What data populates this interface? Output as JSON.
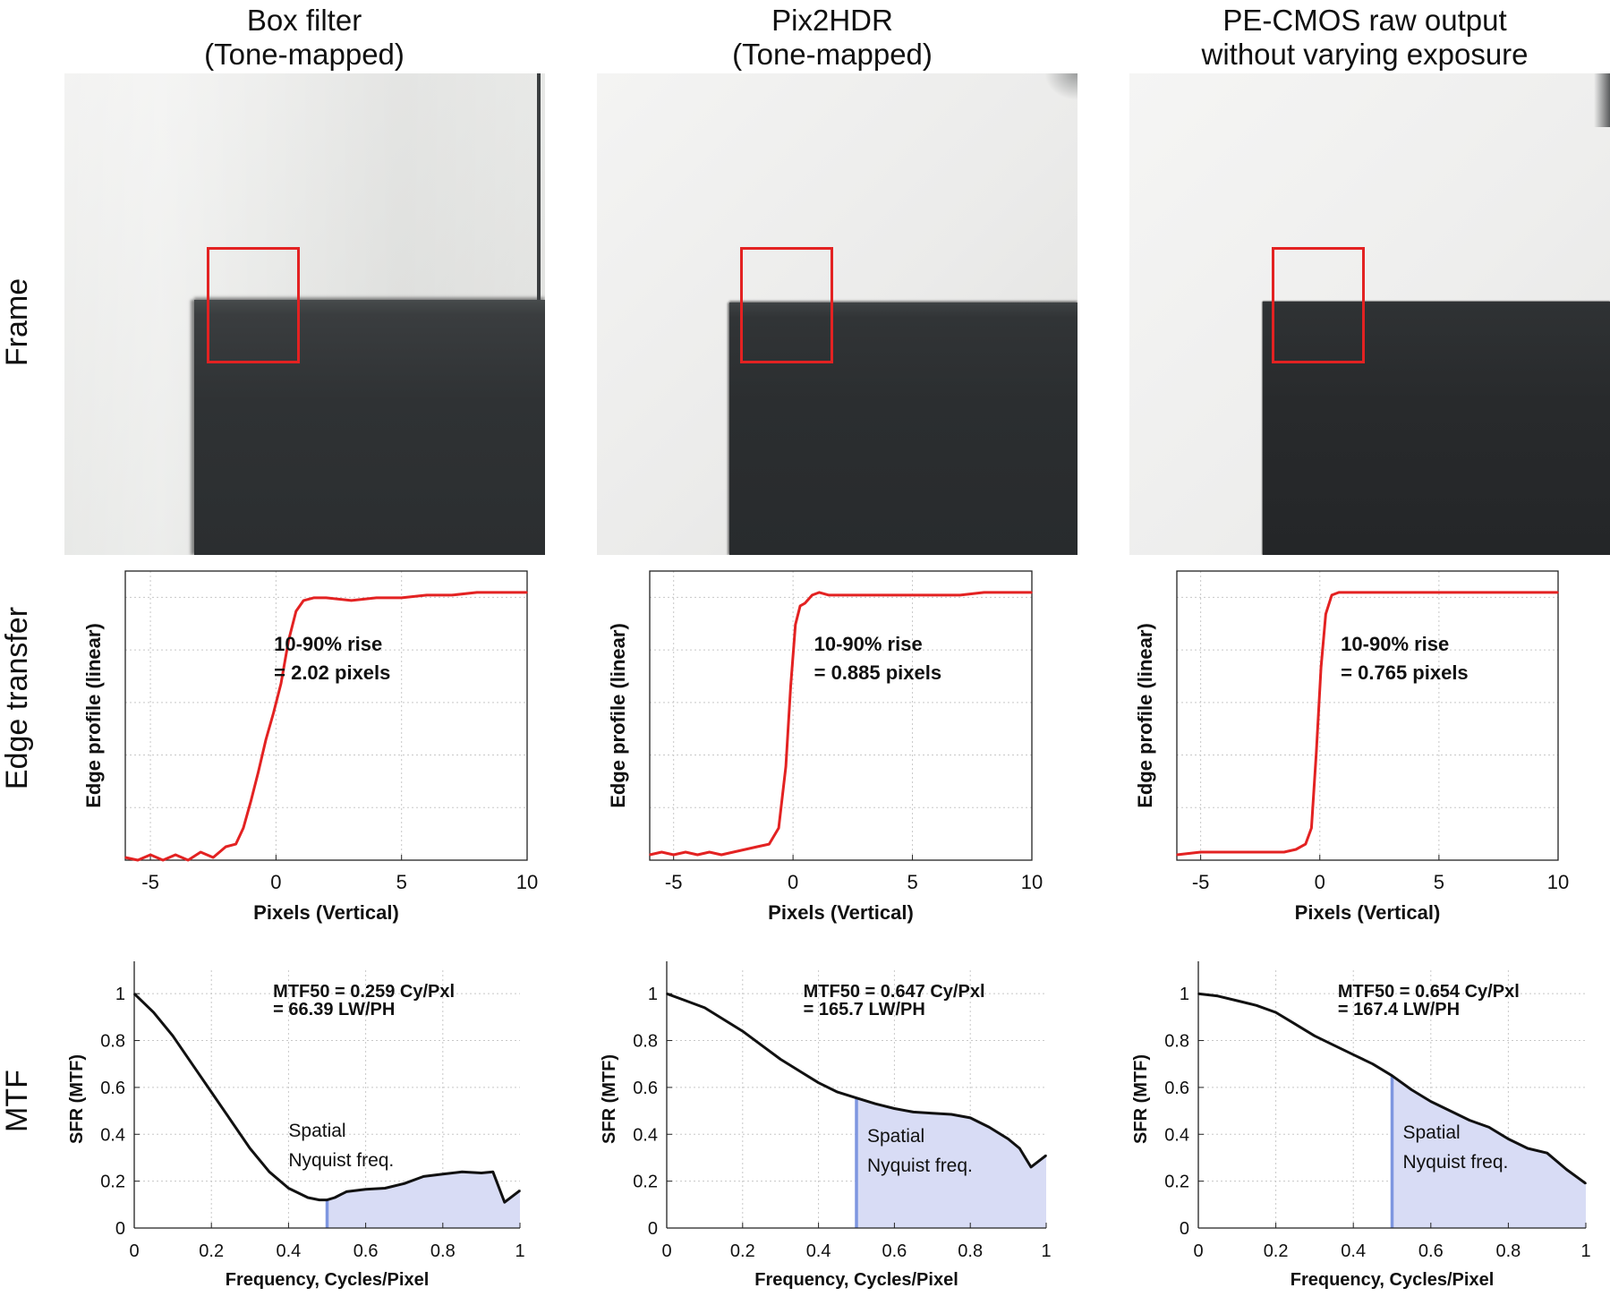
{
  "columns": [
    {
      "title_line1": "Box filter",
      "title_line2": "(Tone-mapped)"
    },
    {
      "title_line1": "Pix2HDR",
      "title_line2": "(Tone-mapped)"
    },
    {
      "title_line1": "PE-CMOS raw output",
      "title_line2": "without varying exposure"
    }
  ],
  "row_labels": {
    "frame": "Frame",
    "edge": "Edge transfer",
    "mtf": "MTF"
  },
  "colors": {
    "curve": "#e32222",
    "mtf_line": "#111111",
    "fill": "#d8dcf5",
    "nyquist": "#7e96e0",
    "roi": "#e32222"
  },
  "chart_data": [
    {
      "type": "line",
      "panel": "edge",
      "column": 0,
      "xlabel": "Pixels (Vertical)",
      "ylabel": "Edge profile (linear)",
      "xlim": [
        -6,
        10
      ],
      "ylim": [
        0,
        1.08
      ],
      "xticks": [
        -5,
        0,
        5,
        10
      ],
      "xtick_labels": [
        "-5",
        "0",
        "5",
        "10"
      ],
      "annotation_line1": "10-90% rise",
      "annotation_line2": "= 2.02 pixels",
      "x": [
        -6,
        -5.5,
        -5,
        -4.5,
        -4,
        -3.5,
        -3,
        -2.5,
        -2,
        -1.6,
        -1.3,
        -1.0,
        -0.7,
        -0.4,
        -0.1,
        0.2,
        0.5,
        0.8,
        1.1,
        1.5,
        2,
        3,
        4,
        5,
        6,
        7,
        8,
        9,
        10
      ],
      "y": [
        0.01,
        0.0,
        0.02,
        0.0,
        0.02,
        0.0,
        0.03,
        0.01,
        0.05,
        0.06,
        0.12,
        0.22,
        0.33,
        0.45,
        0.55,
        0.66,
        0.82,
        0.93,
        0.97,
        0.98,
        0.98,
        0.97,
        0.98,
        0.98,
        0.99,
        0.99,
        1.0,
        1.0,
        1.0
      ]
    },
    {
      "type": "line",
      "panel": "edge",
      "column": 1,
      "xlabel": "Pixels (Vertical)",
      "ylabel": "Edge profile (linear)",
      "xlim": [
        -6,
        10
      ],
      "ylim": [
        0,
        1.08
      ],
      "xticks": [
        -5,
        0,
        5,
        10
      ],
      "xtick_labels": [
        "-5",
        "0",
        "5",
        "10"
      ],
      "annotation_line1": "10-90% rise",
      "annotation_line2": "= 0.885 pixels",
      "x": [
        -6,
        -5.5,
        -5,
        -4.5,
        -4,
        -3.5,
        -3,
        -2.5,
        -2,
        -1.5,
        -1,
        -0.6,
        -0.3,
        -0.1,
        0.1,
        0.3,
        0.5,
        0.8,
        1.1,
        1.5,
        2,
        3,
        4,
        5,
        6,
        7,
        8,
        9,
        10
      ],
      "y": [
        0.02,
        0.03,
        0.02,
        0.03,
        0.02,
        0.03,
        0.02,
        0.03,
        0.04,
        0.05,
        0.06,
        0.12,
        0.35,
        0.65,
        0.88,
        0.95,
        0.96,
        0.99,
        1.0,
        0.99,
        0.99,
        0.99,
        0.99,
        0.99,
        0.99,
        0.99,
        1.0,
        1.0,
        1.0
      ]
    },
    {
      "type": "line",
      "panel": "edge",
      "column": 2,
      "xlabel": "Pixels (Vertical)",
      "ylabel": "Edge profile (linear)",
      "xlim": [
        -6,
        10
      ],
      "ylim": [
        0,
        1.08
      ],
      "xticks": [
        -5,
        0,
        5,
        10
      ],
      "xtick_labels": [
        "-5",
        "0",
        "5",
        "10"
      ],
      "annotation_line1": "10-90% rise",
      "annotation_line2": "= 0.765 pixels",
      "x": [
        -6,
        -5,
        -4,
        -3,
        -2,
        -1.5,
        -1,
        -0.6,
        -0.35,
        -0.15,
        0.05,
        0.25,
        0.5,
        0.8,
        1.2,
        2,
        3,
        4,
        5,
        6,
        7,
        8,
        9,
        10
      ],
      "y": [
        0.02,
        0.03,
        0.03,
        0.03,
        0.03,
        0.03,
        0.04,
        0.06,
        0.12,
        0.4,
        0.72,
        0.92,
        0.99,
        1.0,
        1.0,
        1.0,
        1.0,
        1.0,
        1.0,
        1.0,
        1.0,
        1.0,
        1.0,
        1.0
      ]
    },
    {
      "type": "area",
      "panel": "mtf",
      "column": 0,
      "xlabel": "Frequency, Cycles/Pixel",
      "ylabel": "SFR (MTF)",
      "xlim": [
        0,
        1
      ],
      "ylim": [
        0,
        1.1
      ],
      "xticks": [
        0,
        0.2,
        0.4,
        0.6,
        0.8,
        1
      ],
      "xtick_labels": [
        "0",
        "0.2",
        "0.4",
        "0.6",
        "0.8",
        "1"
      ],
      "yticks": [
        0,
        0.2,
        0.4,
        0.6,
        0.8,
        1
      ],
      "ytick_labels": [
        "0",
        "0.2",
        "0.4",
        "0.6",
        "0.8",
        "1"
      ],
      "annotation_line1": "MTF50 = 0.259 Cy/Pxl",
      "annotation_line2": "= 66.39 LW/PH",
      "nyquist_line1": "Spatial",
      "nyquist_line2": "Nyquist freq.",
      "nyquist_x": 0.5,
      "x": [
        0,
        0.05,
        0.1,
        0.15,
        0.2,
        0.25,
        0.3,
        0.35,
        0.4,
        0.45,
        0.48,
        0.5,
        0.52,
        0.55,
        0.6,
        0.65,
        0.7,
        0.75,
        0.8,
        0.85,
        0.9,
        0.93,
        0.96,
        1.0
      ],
      "y": [
        1.0,
        0.92,
        0.82,
        0.7,
        0.58,
        0.46,
        0.34,
        0.24,
        0.17,
        0.13,
        0.12,
        0.12,
        0.13,
        0.155,
        0.165,
        0.17,
        0.19,
        0.22,
        0.23,
        0.24,
        0.235,
        0.24,
        0.11,
        0.16
      ]
    },
    {
      "type": "area",
      "panel": "mtf",
      "column": 1,
      "xlabel": "Frequency, Cycles/Pixel",
      "ylabel": "SFR (MTF)",
      "xlim": [
        0,
        1
      ],
      "ylim": [
        0,
        1.1
      ],
      "xticks": [
        0,
        0.2,
        0.4,
        0.6,
        0.8,
        1
      ],
      "xtick_labels": [
        "0",
        "0.2",
        "0.4",
        "0.6",
        "0.8",
        "1"
      ],
      "yticks": [
        0,
        0.2,
        0.4,
        0.6,
        0.8,
        1
      ],
      "ytick_labels": [
        "0",
        "0.2",
        "0.4",
        "0.6",
        "0.8",
        "1"
      ],
      "annotation_line1": "MTF50 = 0.647 Cy/Pxl",
      "annotation_line2": "= 165.7 LW/PH",
      "nyquist_line1": "Spatial",
      "nyquist_line2": "Nyquist freq.",
      "nyquist_x": 0.5,
      "x": [
        0,
        0.05,
        0.1,
        0.15,
        0.2,
        0.25,
        0.3,
        0.35,
        0.4,
        0.45,
        0.5,
        0.55,
        0.6,
        0.65,
        0.7,
        0.75,
        0.8,
        0.85,
        0.9,
        0.93,
        0.96,
        1.0
      ],
      "y": [
        1.0,
        0.97,
        0.94,
        0.89,
        0.84,
        0.78,
        0.72,
        0.67,
        0.62,
        0.58,
        0.555,
        0.53,
        0.51,
        0.495,
        0.49,
        0.485,
        0.47,
        0.43,
        0.38,
        0.34,
        0.26,
        0.31
      ]
    },
    {
      "type": "area",
      "panel": "mtf",
      "column": 2,
      "xlabel": "Frequency, Cycles/Pixel",
      "ylabel": "SFR (MTF)",
      "xlim": [
        0,
        1
      ],
      "ylim": [
        0,
        1.1
      ],
      "xticks": [
        0,
        0.2,
        0.4,
        0.6,
        0.8,
        1
      ],
      "xtick_labels": [
        "0",
        "0.2",
        "0.4",
        "0.6",
        "0.8",
        "1"
      ],
      "yticks": [
        0,
        0.2,
        0.4,
        0.6,
        0.8,
        1
      ],
      "ytick_labels": [
        "0",
        "0.2",
        "0.4",
        "0.6",
        "0.8",
        "1"
      ],
      "annotation_line1": "MTF50 = 0.654 Cy/Pxl",
      "annotation_line2": "= 167.4 LW/PH",
      "nyquist_line1": "Spatial",
      "nyquist_line2": "Nyquist freq.",
      "nyquist_x": 0.5,
      "x": [
        0,
        0.05,
        0.1,
        0.15,
        0.2,
        0.25,
        0.3,
        0.35,
        0.4,
        0.45,
        0.5,
        0.55,
        0.6,
        0.65,
        0.7,
        0.75,
        0.8,
        0.85,
        0.9,
        0.95,
        1.0
      ],
      "y": [
        1.0,
        0.99,
        0.97,
        0.95,
        0.92,
        0.87,
        0.82,
        0.78,
        0.74,
        0.7,
        0.65,
        0.59,
        0.54,
        0.5,
        0.46,
        0.43,
        0.38,
        0.34,
        0.32,
        0.25,
        0.19
      ]
    }
  ]
}
